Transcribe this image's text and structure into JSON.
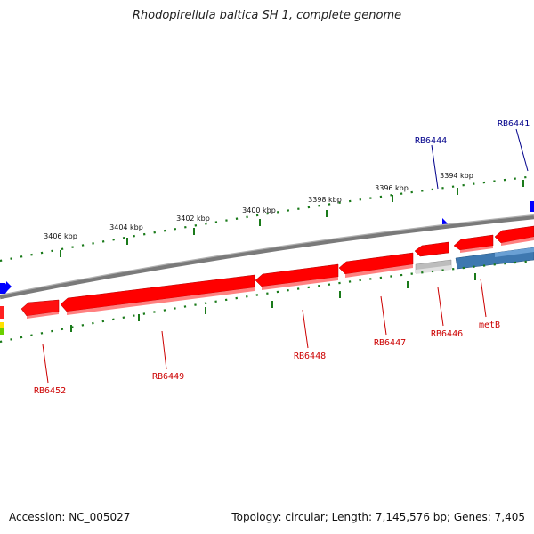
{
  "title": "Rhodopirellula baltica SH 1, complete genome",
  "footer": {
    "accession": "Accession: NC_005027",
    "summary": "Topology: circular; Length: 7,145,576 bp; Genes: 7,405"
  },
  "scale_labels": [
    "3406 kbp",
    "3404 kbp",
    "3402 kbp",
    "3400 kbp",
    "3398 kbp",
    "3396 kbp",
    "3394 kbp"
  ],
  "gene_labels": {
    "top": [
      "RB6444",
      "RB6441"
    ],
    "bottom": [
      "RB6452",
      "RB6449",
      "RB6448",
      "RB6447",
      "RB6446",
      "metB"
    ]
  },
  "colors": {
    "backbone": "#808080",
    "gene_red": "#ff0000",
    "gene_blue": "#3e78b0",
    "gene_gray": "#bdbdbd",
    "scale": "#1a7a1a",
    "label_top": "#00008b",
    "label_bottom": "#cc0000"
  }
}
